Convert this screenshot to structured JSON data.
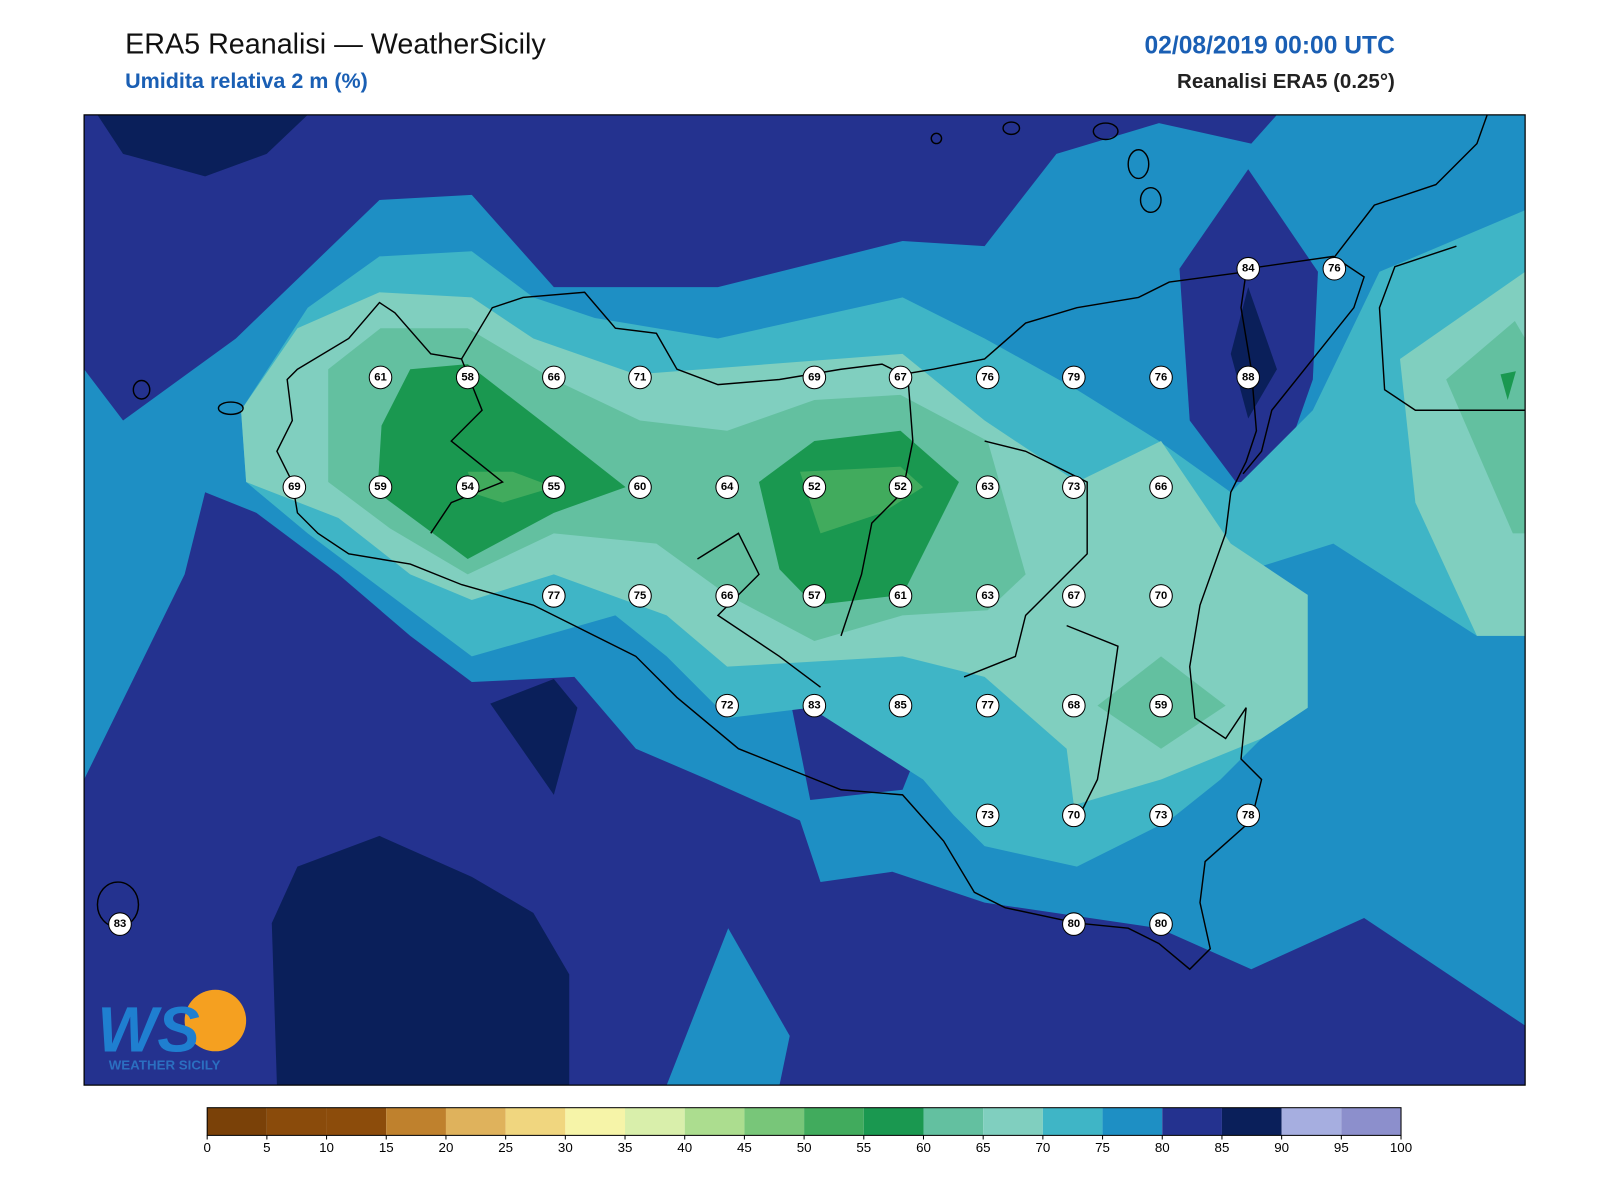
{
  "header": {
    "title": "ERA5 Reanalisi — WeatherSicily",
    "subtitle": "Umidita relativa 2 m (%)",
    "date": "02/08/2019 00:00 UTC",
    "source": "Reanalisi ERA5 (0.25°)"
  },
  "station_values": [
    84,
    76,
    61,
    58,
    66,
    71,
    69,
    67,
    76,
    79,
    76,
    88,
    69,
    59,
    54,
    55,
    60,
    64,
    52,
    52,
    63,
    73,
    66,
    77,
    75,
    66,
    57,
    61,
    63,
    67,
    70,
    72,
    83,
    85,
    77,
    68,
    59,
    73,
    70,
    73,
    78,
    83,
    80,
    80
  ],
  "colorbar": {
    "ticks": [
      0,
      5,
      10,
      15,
      20,
      25,
      30,
      35,
      40,
      45,
      50,
      55,
      60,
      65,
      70,
      75,
      80,
      85,
      90,
      95,
      100
    ],
    "colors": [
      "#7a4108",
      "#8a4b0b",
      "#8c4c0b",
      "#bf812d",
      "#dfb25c",
      "#f0d67f",
      "#f6f4a8",
      "#d9efab",
      "#acdd8f",
      "#78c679",
      "#41ab5d",
      "#1a9850",
      "#63c0a0",
      "#80cfbf",
      "#3fb5c6",
      "#1e8fc4",
      "#24328f",
      "#0a1f5a",
      "#a6aee0",
      "#8c8fcc"
    ]
  },
  "logo": {
    "mark": "WS",
    "text": "WEATHER SICILY"
  }
}
